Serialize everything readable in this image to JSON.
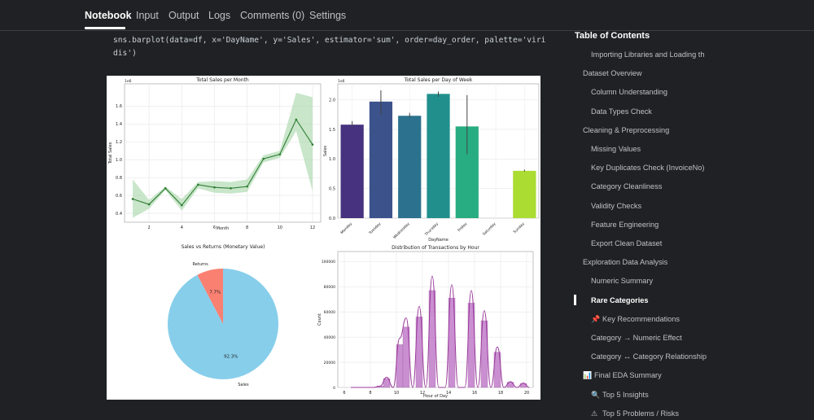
{
  "tabs": [
    {
      "label": "Notebook",
      "active": true
    },
    {
      "label": "Input"
    },
    {
      "label": "Output"
    },
    {
      "label": "Logs"
    },
    {
      "label": "Comments (0)"
    },
    {
      "label": "Settings"
    }
  ],
  "code": {
    "line1": "sns.barplot(data=df, x='DayName', y='Sales', estimator='sum', order=day_order, palette='viri",
    "line2": "dis')"
  },
  "toc": {
    "title": "Table of Contents",
    "items": [
      {
        "label": "Importing Libraries and Loading th",
        "level": 2
      },
      {
        "label": "Dataset Overview",
        "level": 1
      },
      {
        "label": "Column Understanding",
        "level": 2
      },
      {
        "label": "Data Types Check",
        "level": 2
      },
      {
        "label": "Cleaning & Preprocessing",
        "level": 1
      },
      {
        "label": "Missing Values",
        "level": 2
      },
      {
        "label": "Key Duplicates Check (InvoiceNo)",
        "level": 2
      },
      {
        "label": "Category Cleanliness",
        "level": 2
      },
      {
        "label": "Validity Checks",
        "level": 2
      },
      {
        "label": "Feature Engineering",
        "level": 2
      },
      {
        "label": "Export Clean Dataset",
        "level": 2
      },
      {
        "label": "Exploration Data Analysis",
        "level": 1
      },
      {
        "label": "Numeric Summary",
        "level": 2
      },
      {
        "label": "Rare Categories",
        "level": 2,
        "active": true
      },
      {
        "label": "Key Recommendations",
        "level": 2,
        "icon": "pushpin-icon"
      },
      {
        "label": "Category → Numeric Effect",
        "level": 2
      },
      {
        "label": "Category ↔ Category Relationship",
        "level": 2
      },
      {
        "label": "Final EDA Summary",
        "level": 1,
        "icon": "bar-chart-icon"
      },
      {
        "label": "Top 5 Insights",
        "level": 2,
        "icon": "magnifier-icon"
      },
      {
        "label": "Top 5 Problems / Risks",
        "level": 2,
        "icon": "warning-icon"
      }
    ]
  },
  "chart_data": [
    {
      "type": "line",
      "title": "Total Sales per Month",
      "xlabel": "Month",
      "ylabel": "Total Sales",
      "y_scale_label": "1e6",
      "x": [
        1,
        2,
        3,
        4,
        5,
        6,
        7,
        8,
        9,
        10,
        11,
        12
      ],
      "values": [
        0.56,
        0.5,
        0.68,
        0.49,
        0.72,
        0.69,
        0.68,
        0.7,
        1.01,
        1.06,
        1.45,
        1.17
      ],
      "ci_upper": [
        0.78,
        0.55,
        0.7,
        0.56,
        0.75,
        0.76,
        0.75,
        0.78,
        1.05,
        1.1,
        1.75,
        1.7
      ],
      "ci_lower": [
        0.35,
        0.45,
        0.66,
        0.43,
        0.68,
        0.63,
        0.62,
        0.64,
        0.97,
        1.02,
        1.32,
        0.65
      ],
      "xticks": [
        2,
        4,
        6,
        8,
        10,
        12
      ],
      "yticks": [
        0.4,
        0.6,
        0.8,
        1.0,
        1.2,
        1.4,
        1.6
      ],
      "ylim": [
        0.3,
        1.85
      ],
      "xlim": [
        0.5,
        12.5
      ],
      "color": "#2e7d32",
      "ci_color": "#a5d6a7",
      "grid": true
    },
    {
      "type": "bar",
      "title": "Total Sales per Day of Week",
      "xlabel": "DayName",
      "ylabel": "Sales",
      "y_scale_label": "1e6",
      "categories": [
        "Monday",
        "Tuesday",
        "Wednesday",
        "Thursday",
        "Friday",
        "Saturday",
        "Sunday"
      ],
      "values": [
        1.58,
        1.97,
        1.73,
        2.1,
        1.55,
        0,
        0.8
      ],
      "err_low": [
        1.54,
        1.75,
        1.7,
        2.05,
        1.08,
        0,
        0.79
      ],
      "err_high": [
        1.64,
        2.16,
        1.78,
        2.14,
        2.08,
        0,
        0.82
      ],
      "colors": [
        "#46327e",
        "#3b528b",
        "#2c728e",
        "#21908c",
        "#27ad81",
        "#5cc863",
        "#aadc32"
      ],
      "yticks": [
        0.0,
        0.5,
        1.0,
        1.5,
        2.0
      ],
      "ylim": [
        0,
        2.27
      ],
      "grid": true
    },
    {
      "type": "pie",
      "title": "Sales vs Returns (Monetary Value)",
      "labels": [
        "Sales",
        "Returns"
      ],
      "values": [
        92.3,
        7.7
      ],
      "value_labels": [
        "92.3%",
        "7.7%"
      ],
      "colors": [
        "#87ceeb",
        "#fa8072"
      ]
    },
    {
      "type": "bar",
      "title": "Distribution of Transactions by Hour",
      "xlabel": "Hour of Day",
      "ylabel": "Count",
      "bins": [
        7.5,
        8,
        8.5,
        9,
        9.5,
        10,
        10.5,
        11,
        11.5,
        12,
        12.5,
        13,
        13.5,
        14,
        14.5,
        15,
        15.5,
        16,
        16.5,
        17,
        17.5,
        18,
        18.5,
        19,
        19.5,
        20
      ],
      "counts": [
        0,
        0,
        1000,
        7000,
        0,
        34000,
        48000,
        0,
        56000,
        0,
        77000,
        0,
        0,
        71000,
        0,
        0,
        67000,
        0,
        53000,
        0,
        28000,
        0,
        4000,
        0,
        3000
      ],
      "xticks": [
        6,
        8,
        10,
        12,
        14,
        16,
        18,
        20
      ],
      "yticks": [
        0,
        20000,
        40000,
        60000,
        80000,
        100000
      ],
      "xlim": [
        5.5,
        20.5
      ],
      "ylim": [
        0,
        108000
      ],
      "color": "#c17cc9",
      "kde_color": "#9a3a9a",
      "grid": true
    }
  ]
}
